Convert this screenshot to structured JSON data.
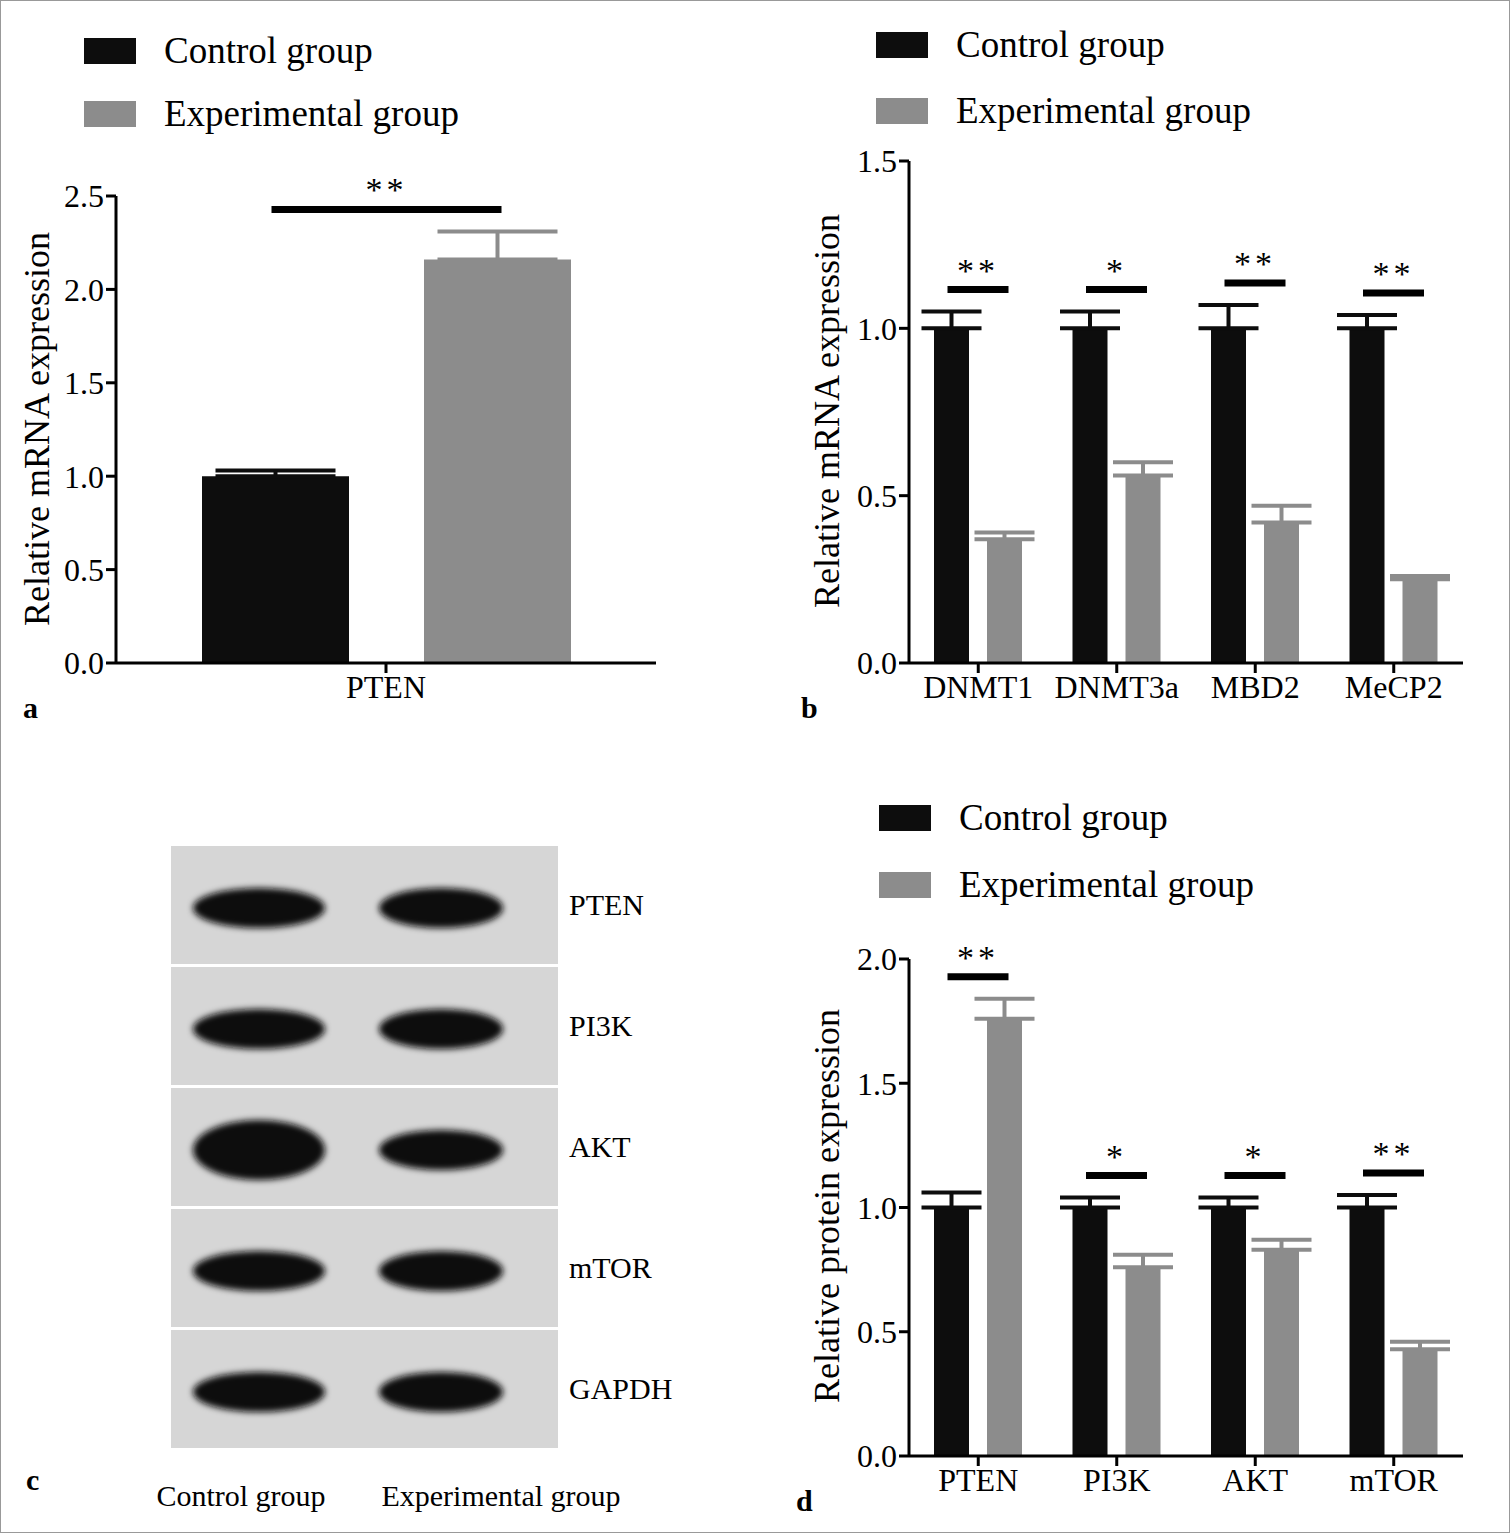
{
  "chart_data": [
    {
      "type": "bar",
      "panel_label": "a",
      "categories": [
        "PTEN"
      ],
      "series": [
        {
          "name": "Control group",
          "color": "#0d0d0d",
          "values": [
            1.0
          ],
          "errors": [
            0.03
          ]
        },
        {
          "name": "Experimental group",
          "color": "#8c8c8c",
          "values": [
            2.16
          ],
          "errors": [
            0.15
          ]
        }
      ],
      "y_label": "Relative mRNA expression",
      "ylim": [
        0,
        2.5
      ],
      "yticks": [
        {
          "value": 0,
          "label": "0.0"
        },
        0.5,
        {
          "value": 1,
          "label": "1.0"
        },
        1.5,
        {
          "value": 2,
          "label": "2.0"
        },
        2.5
      ],
      "significance": [
        "**"
      ]
    },
    {
      "type": "bar",
      "panel_label": "b",
      "categories": [
        "DNMT1",
        "DNMT3a",
        "MBD2",
        "MeCP2"
      ],
      "series": [
        {
          "name": "Control group",
          "color": "#0d0d0d",
          "values": [
            1.0,
            1.0,
            1.0,
            1.0
          ],
          "errors": [
            0.05,
            0.05,
            0.07,
            0.04
          ]
        },
        {
          "name": "Experimental group",
          "color": "#8c8c8c",
          "values": [
            0.37,
            0.56,
            0.42,
            0.25
          ],
          "errors": [
            0.02,
            0.04,
            0.05,
            0.01
          ]
        }
      ],
      "y_label": "Relative mRNA expression",
      "ylim": [
        0,
        1.5
      ],
      "yticks": [
        {
          "value": 0,
          "label": "0.0"
        },
        0.5,
        {
          "value": 1,
          "label": "1.0"
        },
        1.5
      ],
      "significance": [
        "**",
        "*",
        "**",
        "**"
      ]
    },
    {
      "type": "western_blot",
      "panel_label": "c",
      "lanes": [
        "Control group",
        "Experimental group"
      ],
      "rows": [
        "PTEN",
        "PI3K",
        "AKT",
        "mTOR",
        "GAPDH"
      ]
    },
    {
      "type": "bar",
      "panel_label": "d",
      "categories": [
        "PTEN",
        "PI3K",
        "AKT",
        "mTOR"
      ],
      "series": [
        {
          "name": "Control group",
          "color": "#0d0d0d",
          "values": [
            1.0,
            1.0,
            1.0,
            1.0
          ],
          "errors": [
            0.06,
            0.04,
            0.04,
            0.05
          ]
        },
        {
          "name": "Experimental group",
          "color": "#8c8c8c",
          "values": [
            1.76,
            0.76,
            0.83,
            0.43
          ],
          "errors": [
            0.08,
            0.05,
            0.04,
            0.03
          ]
        }
      ],
      "y_label": "Relative protein expression",
      "ylim": [
        0,
        2
      ],
      "yticks": [
        {
          "value": 0,
          "label": "0.0"
        },
        0.5,
        {
          "value": 1,
          "label": "1.0"
        },
        1.5,
        {
          "value": 2,
          "label": "2.0"
        }
      ],
      "significance": [
        "**",
        "*",
        "*",
        "**"
      ]
    }
  ]
}
